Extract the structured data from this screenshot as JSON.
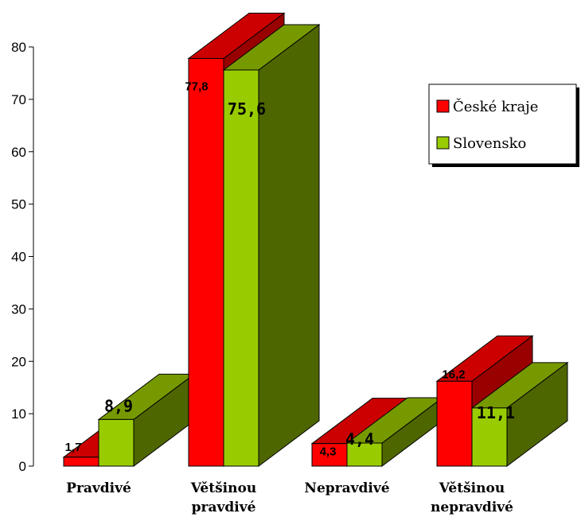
{
  "chart_data": {
    "type": "bar",
    "categories": [
      [
        "Pravdivé"
      ],
      [
        "Většinou",
        "pravdivé"
      ],
      [
        "Nepravdivé"
      ],
      [
        "Většinou",
        "nepravdivé"
      ]
    ],
    "series": [
      {
        "name": "České kraje",
        "values": [
          1.7,
          77.8,
          4.3,
          16.2
        ],
        "labels": [
          "1,7",
          "77,8",
          "4,3",
          "16,2"
        ],
        "colors": {
          "front": "#ff0000",
          "top": "#cc0000",
          "side": "#990000"
        }
      },
      {
        "name": "Slovensko",
        "values": [
          8.9,
          75.6,
          4.4,
          11.1
        ],
        "labels": [
          "8,9",
          "75,6",
          "4,4",
          "11,1"
        ],
        "colors": {
          "front": "#99cc00",
          "top": "#779900",
          "side": "#4d6600"
        }
      }
    ],
    "ylim": [
      0,
      80
    ],
    "yticks": [
      "0",
      "10",
      "20",
      "30",
      "40",
      "50",
      "60",
      "70",
      "80"
    ],
    "legend_position": "top-right",
    "grid": false,
    "three_d": true
  }
}
